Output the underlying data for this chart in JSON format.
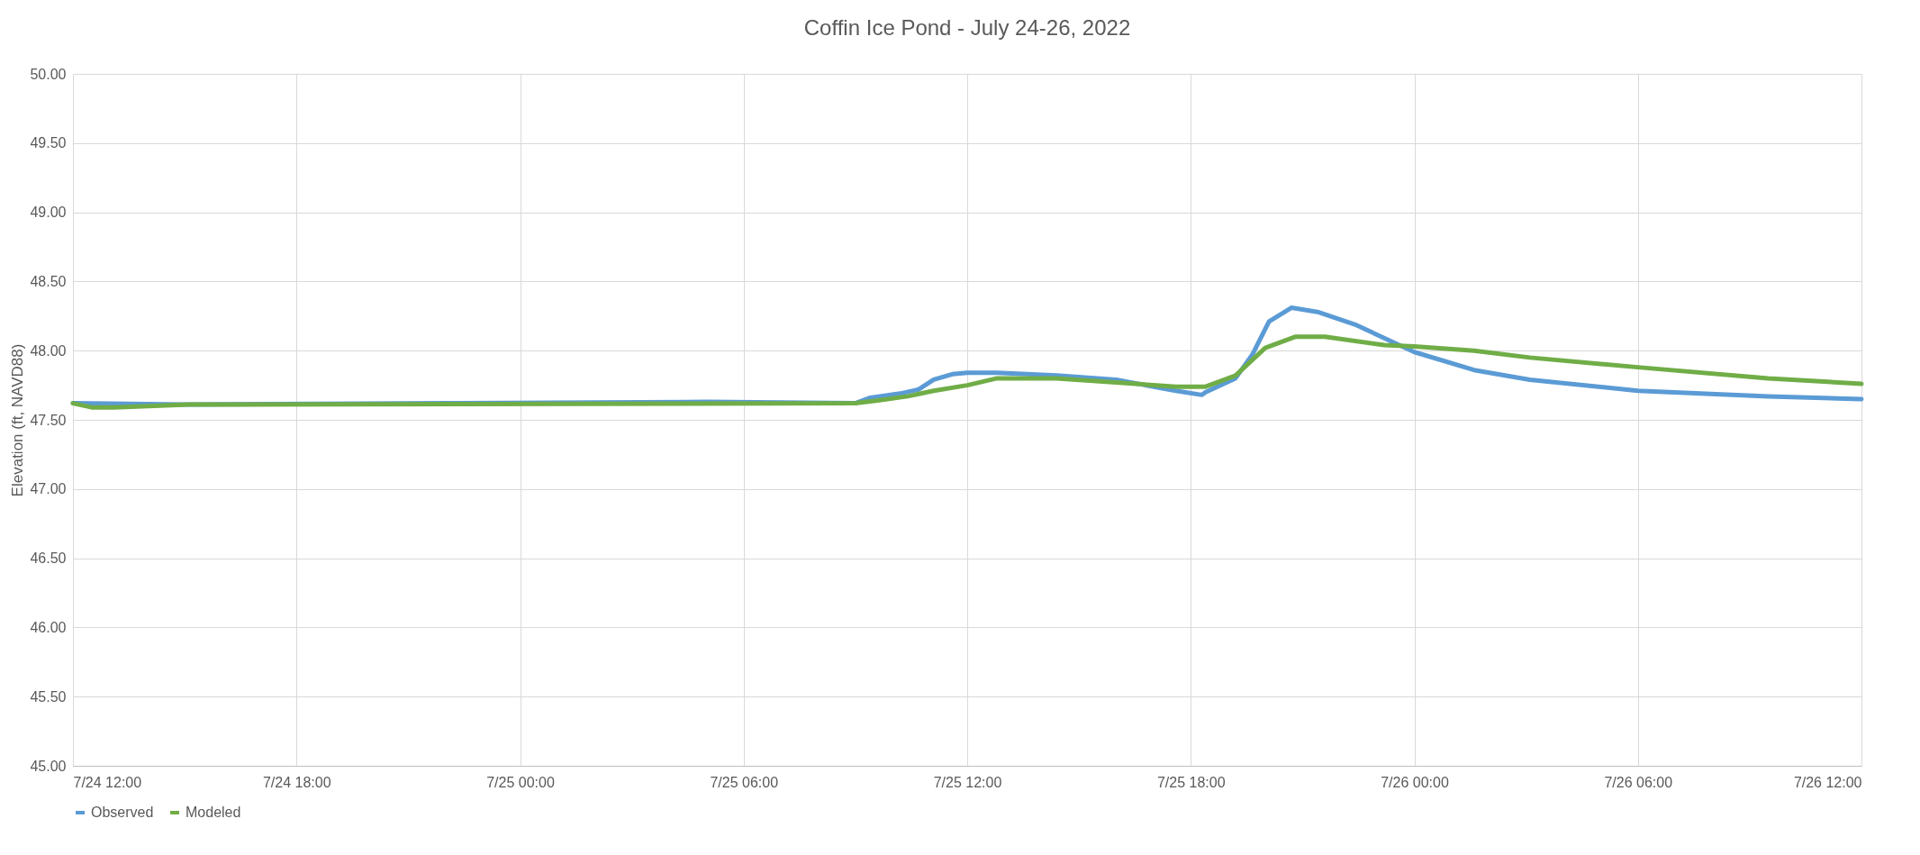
{
  "chart_data": {
    "type": "line",
    "title": "Coffin Ice Pond - July 24-26, 2022",
    "ylabel": "Elevation (ft, NAVD88)",
    "xlim": [
      "2022-07-24T12:00",
      "2022-07-26T12:00"
    ],
    "xticks": [
      {
        "value": "2022-07-24T12:00",
        "label": "7/24 12:00"
      },
      {
        "value": "2022-07-24T18:00",
        "label": "7/24 18:00"
      },
      {
        "value": "2022-07-25T00:00",
        "label": "7/25 00:00"
      },
      {
        "value": "2022-07-25T06:00",
        "label": "7/25 06:00"
      },
      {
        "value": "2022-07-25T12:00",
        "label": "7/25 12:00"
      },
      {
        "value": "2022-07-25T18:00",
        "label": "7/25 18:00"
      },
      {
        "value": "2022-07-26T00:00",
        "label": "7/26 00:00"
      },
      {
        "value": "2022-07-26T06:00",
        "label": "7/26 06:00"
      },
      {
        "value": "2022-07-26T12:00",
        "label": "7/26 12:00"
      }
    ],
    "ylim": [
      45,
      50
    ],
    "yticks": [
      {
        "value": 45,
        "label": "45.00"
      },
      {
        "value": 45.5,
        "label": "45.50"
      },
      {
        "value": 46,
        "label": "46.00"
      },
      {
        "value": 46.5,
        "label": "46.50"
      },
      {
        "value": 47,
        "label": "47.00"
      },
      {
        "value": 47.5,
        "label": "47.50"
      },
      {
        "value": 48,
        "label": "48.00"
      },
      {
        "value": 48.5,
        "label": "48.50"
      },
      {
        "value": 49,
        "label": "49.00"
      },
      {
        "value": 49.5,
        "label": "49.50"
      },
      {
        "value": 50,
        "label": "50.00"
      }
    ],
    "grid": true,
    "legend": "bottom",
    "marker": "none",
    "line_style": "solid",
    "series": [
      {
        "name": "Observed",
        "color": "#5b9bd5",
        "x": [
          "2022-07-24T12:00",
          "2022-07-24T15:00",
          "2022-07-24T22:00",
          "2022-07-25T05:00",
          "2022-07-25T09:00",
          "2022-07-25T09:24",
          "2022-07-25T10:12",
          "2022-07-25T10:42",
          "2022-07-25T11:06",
          "2022-07-25T11:36",
          "2022-07-25T12:00",
          "2022-07-25T12:48",
          "2022-07-25T14:24",
          "2022-07-25T16:00",
          "2022-07-25T17:36",
          "2022-07-25T18:18",
          "2022-07-25T18:24",
          "2022-07-25T19:12",
          "2022-07-25T19:39",
          "2022-07-25T20:06",
          "2022-07-25T20:42",
          "2022-07-25T21:24",
          "2022-07-25T22:24",
          "2022-07-26T00:00",
          "2022-07-26T01:36",
          "2022-07-26T03:06",
          "2022-07-26T06:00",
          "2022-07-26T09:30",
          "2022-07-26T12:00"
        ],
        "values": [
          47.62,
          47.61,
          47.62,
          47.63,
          47.62,
          47.66,
          47.69,
          47.72,
          47.79,
          47.83,
          47.84,
          47.84,
          47.82,
          47.79,
          47.71,
          47.68,
          47.7,
          47.8,
          47.97,
          48.21,
          48.31,
          48.28,
          48.19,
          47.99,
          47.86,
          47.79,
          47.71,
          47.67,
          47.65
        ]
      },
      {
        "name": "Modeled",
        "color": "#70ad47",
        "x": [
          "2022-07-24T12:00",
          "2022-07-24T12:30",
          "2022-07-24T13:06",
          "2022-07-24T15:06",
          "2022-07-25T09:00",
          "2022-07-25T09:36",
          "2022-07-25T10:24",
          "2022-07-25T11:06",
          "2022-07-25T12:00",
          "2022-07-25T12:48",
          "2022-07-25T14:24",
          "2022-07-25T16:00",
          "2022-07-25T17:36",
          "2022-07-25T18:24",
          "2022-07-25T19:12",
          "2022-07-25T20:00",
          "2022-07-25T20:48",
          "2022-07-25T21:36",
          "2022-07-25T23:12",
          "2022-07-26T00:00",
          "2022-07-26T01:36",
          "2022-07-26T03:06",
          "2022-07-26T06:00",
          "2022-07-26T09:30",
          "2022-07-26T12:00"
        ],
        "values": [
          47.62,
          47.59,
          47.59,
          47.61,
          47.62,
          47.64,
          47.67,
          47.71,
          47.75,
          47.8,
          47.8,
          47.77,
          47.74,
          47.74,
          47.82,
          48.02,
          48.1,
          48.1,
          48.04,
          48.03,
          48.0,
          47.95,
          47.88,
          47.8,
          47.76
        ]
      }
    ]
  }
}
